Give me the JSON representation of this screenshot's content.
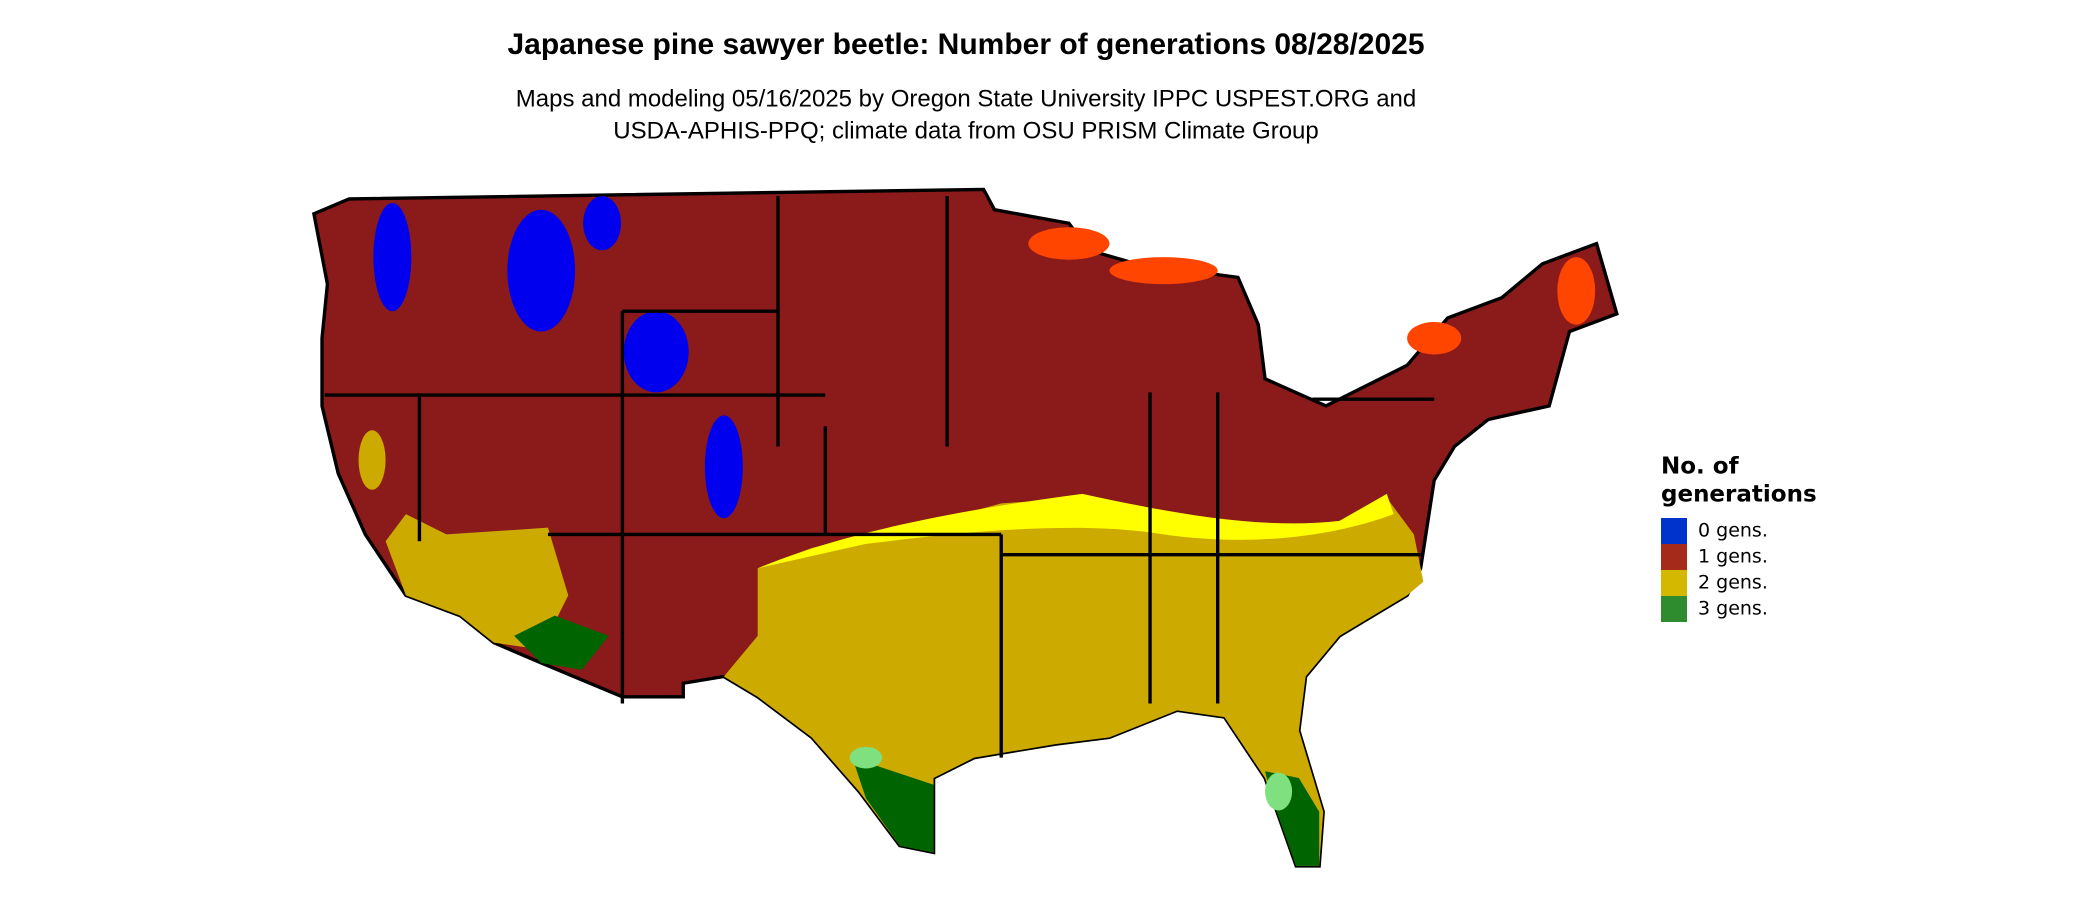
{
  "title": "Japanese pine sawyer beetle: Number of generations 08/28/2025",
  "subtitle": [
    "Maps and modeling 05/16/2025 by Oregon State University IPPC USPEST.ORG and",
    "USDA-APHIS-PPQ; climate data from OSU PRISM Climate Group"
  ],
  "legend": {
    "title": [
      "No. of",
      "generations"
    ],
    "items": [
      {
        "label": "0 gens.",
        "color": "#0033cc"
      },
      {
        "label": "1 gens.",
        "color": "#a52a1a"
      },
      {
        "label": "2 gens.",
        "color": "#d4b800"
      },
      {
        "label": "3 gens.",
        "color": "#2e8b2e"
      }
    ]
  }
}
